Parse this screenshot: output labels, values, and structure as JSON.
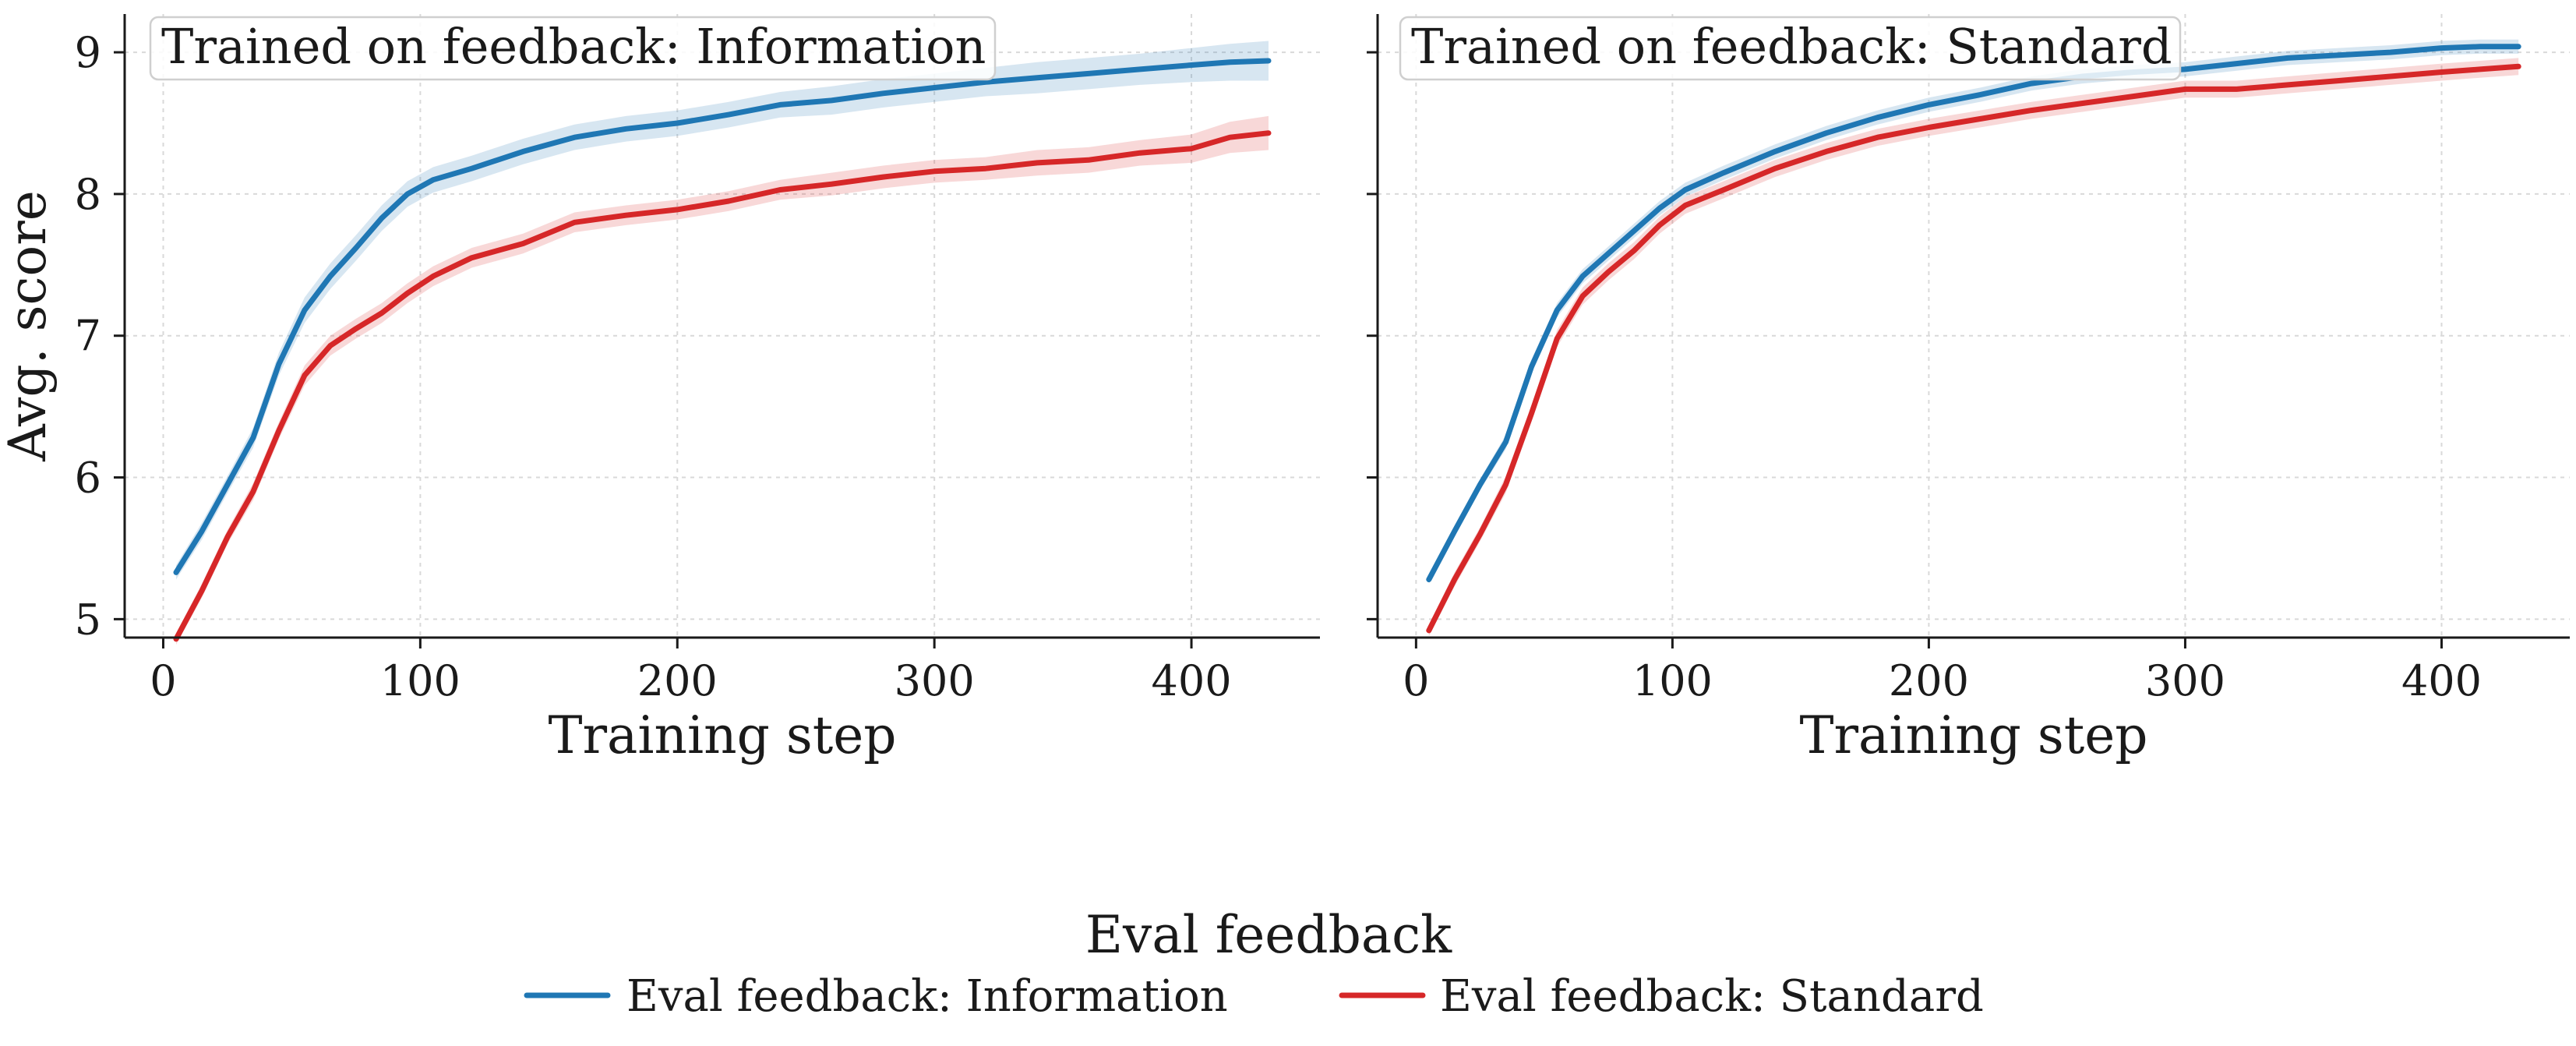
{
  "figure": {
    "legend": {
      "title": "Eval feedback",
      "entries": [
        {
          "label": "Eval feedback: Information",
          "color": "#1f77b4"
        },
        {
          "label": "Eval feedback: Standard",
          "color": "#d62728"
        }
      ]
    }
  },
  "chart_data": [
    {
      "type": "line",
      "title": "Trained on feedback: Information",
      "xlabel": "Training step",
      "ylabel": "Avg. score",
      "xlim": [
        -15,
        450
      ],
      "ylim": [
        4.87,
        9.27
      ],
      "xticks": [
        0,
        100,
        200,
        300,
        400
      ],
      "yticks": [
        5,
        6,
        7,
        8,
        9
      ],
      "grid": true,
      "x": [
        5,
        15,
        25,
        35,
        45,
        55,
        65,
        75,
        85,
        95,
        105,
        120,
        140,
        160,
        180,
        200,
        220,
        240,
        260,
        280,
        300,
        320,
        340,
        360,
        380,
        400,
        415,
        430
      ],
      "series": [
        {
          "name": "Eval feedback: Information",
          "color": "#1f77b4",
          "values": [
            5.33,
            5.62,
            5.95,
            6.28,
            6.8,
            7.18,
            7.42,
            7.62,
            7.83,
            8.0,
            8.1,
            8.18,
            8.3,
            8.4,
            8.46,
            8.5,
            8.56,
            8.63,
            8.66,
            8.71,
            8.75,
            8.79,
            8.82,
            8.85,
            8.88,
            8.91,
            8.93,
            8.94
          ],
          "band": [
            0.05,
            0.06,
            0.06,
            0.07,
            0.08,
            0.09,
            0.09,
            0.09,
            0.09,
            0.09,
            0.09,
            0.09,
            0.09,
            0.09,
            0.09,
            0.09,
            0.09,
            0.09,
            0.1,
            0.1,
            0.1,
            0.1,
            0.11,
            0.11,
            0.11,
            0.12,
            0.13,
            0.14
          ]
        },
        {
          "name": "Eval feedback: Standard",
          "color": "#d62728",
          "values": [
            4.86,
            5.2,
            5.58,
            5.9,
            6.33,
            6.72,
            6.93,
            7.05,
            7.16,
            7.3,
            7.42,
            7.55,
            7.65,
            7.8,
            7.85,
            7.89,
            7.95,
            8.03,
            8.07,
            8.12,
            8.16,
            8.18,
            8.22,
            8.24,
            8.29,
            8.32,
            8.4,
            8.43
          ],
          "band": [
            0.04,
            0.05,
            0.05,
            0.06,
            0.06,
            0.07,
            0.07,
            0.07,
            0.07,
            0.07,
            0.07,
            0.07,
            0.07,
            0.07,
            0.07,
            0.07,
            0.07,
            0.07,
            0.08,
            0.08,
            0.08,
            0.08,
            0.09,
            0.09,
            0.09,
            0.1,
            0.11,
            0.12
          ]
        }
      ]
    },
    {
      "type": "line",
      "title": "Trained on feedback: Standard",
      "xlabel": "Training step",
      "ylabel": "",
      "xlim": [
        -15,
        450
      ],
      "ylim": [
        4.87,
        9.27
      ],
      "xticks": [
        0,
        100,
        200,
        300,
        400
      ],
      "yticks": [
        5,
        6,
        7,
        8,
        9
      ],
      "grid": true,
      "x": [
        5,
        15,
        25,
        35,
        45,
        55,
        65,
        75,
        85,
        95,
        105,
        120,
        140,
        160,
        180,
        200,
        220,
        240,
        260,
        280,
        300,
        320,
        340,
        360,
        380,
        400,
        415,
        430
      ],
      "series": [
        {
          "name": "Eval feedback: Information",
          "color": "#1f77b4",
          "values": [
            5.28,
            5.62,
            5.95,
            6.25,
            6.78,
            7.18,
            7.42,
            7.58,
            7.74,
            7.9,
            8.03,
            8.15,
            8.3,
            8.43,
            8.54,
            8.63,
            8.7,
            8.78,
            8.83,
            8.86,
            8.88,
            8.92,
            8.96,
            8.98,
            9.0,
            9.03,
            9.04,
            9.04
          ],
          "band": [
            0.03,
            0.04,
            0.04,
            0.05,
            0.05,
            0.05,
            0.05,
            0.05,
            0.05,
            0.05,
            0.05,
            0.05,
            0.05,
            0.05,
            0.05,
            0.05,
            0.05,
            0.05,
            0.05,
            0.05,
            0.05,
            0.05,
            0.05,
            0.05,
            0.05,
            0.05,
            0.05,
            0.05
          ]
        },
        {
          "name": "Eval feedback: Standard",
          "color": "#d62728",
          "values": [
            4.92,
            5.28,
            5.6,
            5.95,
            6.45,
            6.98,
            7.28,
            7.45,
            7.6,
            7.78,
            7.92,
            8.03,
            8.18,
            8.3,
            8.4,
            8.47,
            8.53,
            8.59,
            8.64,
            8.69,
            8.74,
            8.74,
            8.77,
            8.8,
            8.83,
            8.86,
            8.88,
            8.9
          ],
          "band": [
            0.04,
            0.05,
            0.05,
            0.06,
            0.06,
            0.06,
            0.06,
            0.06,
            0.06,
            0.06,
            0.06,
            0.06,
            0.06,
            0.06,
            0.06,
            0.06,
            0.06,
            0.06,
            0.06,
            0.06,
            0.06,
            0.06,
            0.06,
            0.06,
            0.06,
            0.06,
            0.06,
            0.06
          ]
        }
      ]
    }
  ]
}
